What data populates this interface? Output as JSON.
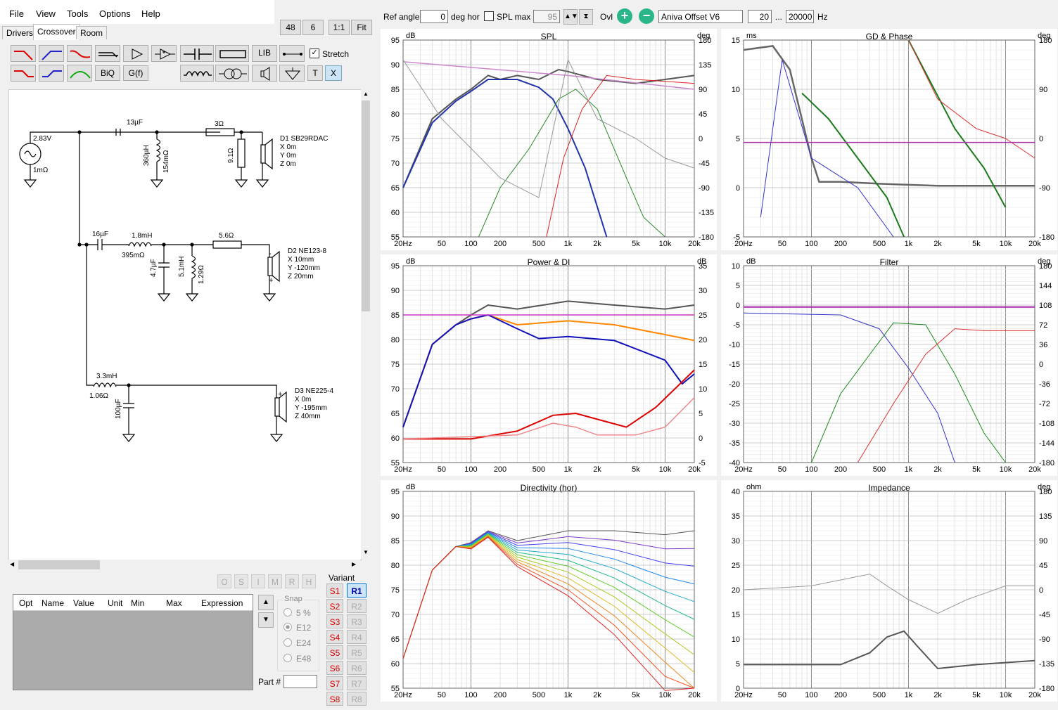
{
  "menu": {
    "file": "File",
    "view": "View",
    "tools": "Tools",
    "options": "Options",
    "help": "Help"
  },
  "tabs": [
    {
      "label": "Drivers"
    },
    {
      "label": "Crossover"
    },
    {
      "label": "Room"
    }
  ],
  "zoom_buttons": [
    "48",
    "6",
    "1:1",
    "Fit"
  ],
  "toolbar": {
    "lib": "LIB",
    "biq": "BiQ",
    "gf": "G(f)",
    "t": "T",
    "x": "X",
    "stretch": "Stretch"
  },
  "schematic": {
    "source": {
      "voltage": "2.83V",
      "resistance": "1mΩ"
    },
    "d1": {
      "name": "D1 SB29RDAC",
      "x": "X 0m",
      "y": "Y 0m",
      "z": "Z 0m"
    },
    "d2": {
      "name": "D2 NE123-8",
      "x": "X 10mm",
      "y": "Y -120mm",
      "z": "Z 20mm"
    },
    "d3": {
      "name": "D3 NE225-4",
      "x": "X 0m",
      "y": "Y -195mm",
      "z": "Z 40mm"
    },
    "c13": "13µF",
    "r3": "3Ω",
    "l360": "360µH",
    "r154": "154mΩ",
    "r91": "9.1Ω",
    "c16": "16µF",
    "l18": "1.8mH",
    "r395": "395mΩ",
    "r56": "5.6Ω",
    "c47": "4.7µF",
    "l51": "5.1mH",
    "r129": "1.29Ω",
    "l33": "3.3mH",
    "r106": "1.06Ω",
    "c100": "100µF"
  },
  "osimrh": [
    "O",
    "S",
    "I",
    "M",
    "R",
    "H"
  ],
  "param_table": {
    "cols": [
      "Opt",
      "Name",
      "Value",
      "Unit",
      "Min",
      "Max",
      "Expression"
    ]
  },
  "snap": {
    "label": "Snap",
    "options": [
      "5 %",
      "E12",
      "E24",
      "E48"
    ],
    "selected": "E12"
  },
  "variant": {
    "label": "Variant",
    "s": [
      "S1",
      "S2",
      "S3",
      "S4",
      "S5",
      "S6",
      "S7",
      "S8"
    ],
    "r": [
      "R1",
      "R2",
      "R3",
      "R4",
      "R5",
      "R6",
      "R7",
      "R8"
    ]
  },
  "part_label": "Part #",
  "top": {
    "ref_angle_label": "Ref angle",
    "ref_angle": "0",
    "deg_hor": "deg hor",
    "spl_max_label": "SPL max",
    "spl_max": "95",
    "ovl": "Ovl",
    "project": "Aniva Offset V6",
    "f_min": "20",
    "dots": "...",
    "f_max": "20000",
    "hz": "Hz"
  },
  "x_ticks": [
    "20Hz",
    "50",
    "100",
    "200",
    "500",
    "1k",
    "2k",
    "5k",
    "10k",
    "20k"
  ],
  "charts": {
    "spl": {
      "title": "SPL",
      "ylabel": "dB",
      "y2label": "deg",
      "y": [
        "95",
        "90",
        "85",
        "80",
        "75",
        "70",
        "65",
        "60",
        "55"
      ],
      "y2": [
        "180",
        "135",
        "90",
        "45",
        "0",
        "-45",
        "-90",
        "-135",
        "-180"
      ]
    },
    "gd": {
      "title": "GD & Phase",
      "ylabel": "ms",
      "y2label": "deg",
      "y": [
        "15",
        "10",
        "5",
        "0",
        "-5"
      ],
      "y2": [
        "180",
        "90",
        "0",
        "-90",
        "-180"
      ]
    },
    "power": {
      "title": "Power & DI",
      "ylabel": "dB",
      "y2label": "dB",
      "y": [
        "95",
        "90",
        "85",
        "80",
        "75",
        "70",
        "65",
        "60",
        "55"
      ],
      "y2": [
        "35",
        "30",
        "25",
        "20",
        "15",
        "10",
        "5",
        "0",
        "-5"
      ]
    },
    "filter": {
      "title": "Filter",
      "ylabel": "dB",
      "y2label": "deg",
      "y": [
        "10",
        "5",
        "0",
        "-5",
        "-10",
        "-15",
        "-20",
        "-25",
        "-30",
        "-35",
        "-40"
      ],
      "y2": [
        "180",
        "144",
        "108",
        "72",
        "36",
        "0",
        "-36",
        "-72",
        "-108",
        "-144",
        "-180"
      ]
    },
    "dir": {
      "title": "Directivity (hor)",
      "ylabel": "dB",
      "y": [
        "95",
        "90",
        "85",
        "80",
        "75",
        "70",
        "65",
        "60",
        "55"
      ]
    },
    "imp": {
      "title": "Impedance",
      "ylabel": "ohm",
      "y2label": "deg",
      "y": [
        "40",
        "35",
        "30",
        "25",
        "20",
        "15",
        "10",
        "5",
        "0"
      ],
      "y2": [
        "180",
        "135",
        "90",
        "45",
        "0",
        "-45",
        "-90",
        "-135",
        "-180"
      ]
    }
  }
}
